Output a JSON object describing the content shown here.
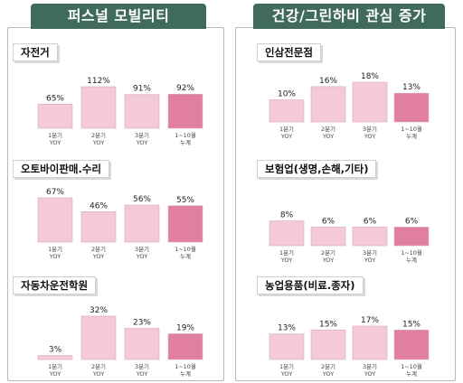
{
  "columns": [
    {
      "title": "퍼스널 모빌리티"
    },
    {
      "title": "건강/그린하비 관심 증가"
    }
  ],
  "colors": {
    "header": "#3f6a5c",
    "bar": "#f4c9d8",
    "bar_highlight": "#e07f9f",
    "bar_border": "#d8a9bb"
  },
  "chart_data": [
    {
      "type": "bar",
      "title": "자전거",
      "categories": [
        [
          "1분기",
          "YOY"
        ],
        [
          "2분기",
          "YOY"
        ],
        [
          "3분기",
          "YOY"
        ],
        [
          "1~10월",
          "누계"
        ]
      ],
      "values": [
        65,
        112,
        91,
        92
      ],
      "labels": [
        "65%",
        "112%",
        "91%",
        "92%"
      ],
      "ylim": [
        0,
        112
      ]
    },
    {
      "type": "bar",
      "title": "오토바이판매.수리",
      "categories": [
        [
          "1분기",
          "YOY"
        ],
        [
          "2분기",
          "YOY"
        ],
        [
          "3분기",
          "YOY"
        ],
        [
          "1~10월",
          "누계"
        ]
      ],
      "values": [
        67,
        46,
        56,
        55
      ],
      "labels": [
        "67%",
        "46%",
        "56%",
        "55%"
      ],
      "ylim": [
        0,
        67
      ]
    },
    {
      "type": "bar",
      "title": "자동차운전학원",
      "categories": [
        [
          "1분기",
          "YOY"
        ],
        [
          "2분기",
          "YOY"
        ],
        [
          "3분기",
          "YOY"
        ],
        [
          "1~10월",
          "누계"
        ]
      ],
      "values": [
        3,
        32,
        23,
        19
      ],
      "labels": [
        "3%",
        "32%",
        "23%",
        "19%"
      ],
      "ylim": [
        0,
        32
      ]
    },
    {
      "type": "bar",
      "title": "인삼전문점",
      "categories": [
        [
          "1분기",
          "YOY"
        ],
        [
          "2분기",
          "YOY"
        ],
        [
          "3분기",
          "YOY"
        ],
        [
          "1~10월",
          "누계"
        ]
      ],
      "values": [
        10,
        16,
        18,
        13
      ],
      "labels": [
        "10%",
        "16%",
        "18%",
        "13%"
      ],
      "ylim": [
        0,
        18
      ]
    },
    {
      "type": "bar",
      "title": "보험업(생명,손해,기타)",
      "categories": [
        [
          "1분기",
          "YOY"
        ],
        [
          "2분기",
          "YOY"
        ],
        [
          "3분기",
          "YOY"
        ],
        [
          "1~10월",
          "누계"
        ]
      ],
      "values": [
        8,
        6,
        6,
        6
      ],
      "labels": [
        "8%",
        "6%",
        "6%",
        "6%"
      ],
      "ylim": [
        0,
        21
      ]
    },
    {
      "type": "bar",
      "title": "농업용품(비료.종자)",
      "categories": [
        [
          "1분기",
          "YOY"
        ],
        [
          "2분기",
          "YOY"
        ],
        [
          "3분기",
          "YOY"
        ],
        [
          "1~10월",
          "누계"
        ]
      ],
      "values": [
        13,
        15,
        17,
        15
      ],
      "labels": [
        "13%",
        "15%",
        "17%",
        "15%"
      ],
      "ylim": [
        0,
        17
      ]
    }
  ]
}
